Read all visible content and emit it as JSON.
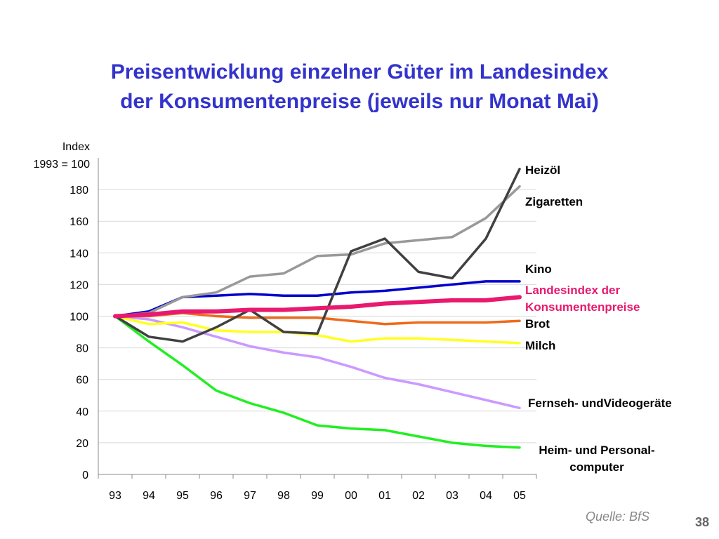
{
  "title": {
    "line1": "Preisentwicklung einzelner Güter im Landesindex",
    "line2": "der Konsumentenpreise (jeweils nur Monat Mai)"
  },
  "y_axis": {
    "label_line1": "Index",
    "label_line2": "1993 = 100"
  },
  "source": "Quelle: BfS",
  "page_number": "38",
  "chart_data": {
    "type": "line",
    "title": "Preisentwicklung einzelner Güter im Landesindex der Konsumentenpreise (jeweils nur Monat Mai)",
    "ylabel": "Index 1993 = 100",
    "ylim": [
      0,
      200
    ],
    "yticks": [
      0,
      20,
      40,
      60,
      80,
      100,
      120,
      140,
      160,
      180
    ],
    "grid": true,
    "categories": [
      "93",
      "94",
      "95",
      "96",
      "97",
      "98",
      "99",
      "00",
      "01",
      "02",
      "03",
      "04",
      "05"
    ],
    "series": [
      {
        "name": "Heizöl",
        "label_lines": [
          "Heizöl"
        ],
        "color": "#404040",
        "width": 3.5,
        "values": [
          100,
          87,
          84,
          93,
          104,
          90,
          89,
          141,
          149,
          128,
          124,
          149,
          193
        ]
      },
      {
        "name": "Zigaretten",
        "label_lines": [
          "Zigaretten"
        ],
        "color": "#999999",
        "width": 3.5,
        "values": [
          100,
          102,
          112,
          115,
          125,
          127,
          138,
          139,
          146,
          148,
          150,
          162,
          182
        ]
      },
      {
        "name": "Kino",
        "label_lines": [
          "Kino"
        ],
        "color": "#0000cc",
        "width": 3.5,
        "values": [
          100,
          103,
          112,
          113,
          114,
          113,
          113,
          115,
          116,
          118,
          120,
          122,
          122
        ]
      },
      {
        "name": "Landesindex der Konsumentenpreise",
        "label_lines": [
          "Landesindex der",
          "Konsumentenpreise"
        ],
        "label_color": "#e8196e",
        "color": "#e8196e",
        "width": 6,
        "values": [
          100,
          101,
          103,
          103,
          104,
          104,
          105,
          106,
          108,
          109,
          110,
          110,
          112
        ]
      },
      {
        "name": "Brot",
        "label_lines": [
          "Brot"
        ],
        "color": "#ee6a1c",
        "width": 3.5,
        "values": [
          100,
          100,
          102,
          100,
          99,
          99,
          99,
          97,
          95,
          96,
          96,
          96,
          97
        ]
      },
      {
        "name": "Milch",
        "label_lines": [
          "Milch"
        ],
        "color": "#ffff22",
        "width": 3.5,
        "values": [
          100,
          95,
          96,
          91,
          90,
          90,
          88,
          84,
          86,
          86,
          85,
          84,
          83
        ]
      },
      {
        "name": "Fernseh- undVideogeräte",
        "label_lines": [
          "Fernseh- undVideogeräte"
        ],
        "color": "#cc99ff",
        "width": 3.5,
        "values": [
          100,
          98,
          93,
          87,
          81,
          77,
          74,
          68,
          61,
          57,
          52,
          47,
          42
        ]
      },
      {
        "name": "Heim- und Personal- computer",
        "label_lines": [
          "Heim- und Personal-",
          "computer"
        ],
        "color": "#22ee22",
        "width": 3.5,
        "values": [
          100,
          84,
          69,
          53,
          45,
          39,
          31,
          29,
          28,
          24,
          20,
          18,
          17
        ]
      }
    ]
  }
}
